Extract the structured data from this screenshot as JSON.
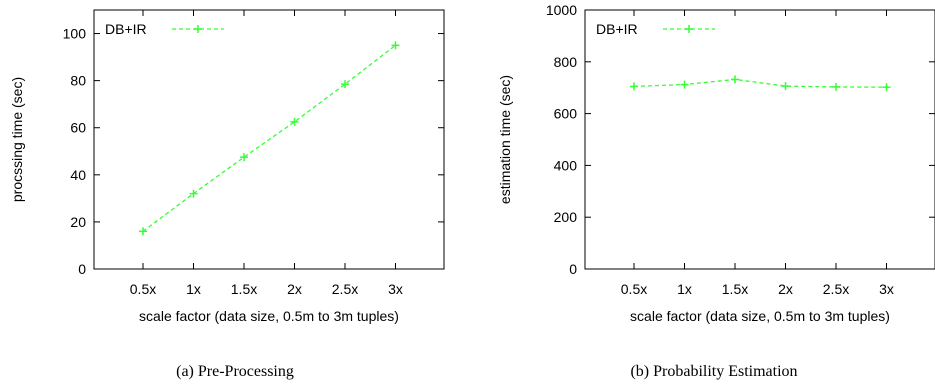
{
  "chart_data": [
    {
      "type": "line",
      "categories": [
        "0.5x",
        "1x",
        "1.5x",
        "2x",
        "2.5x",
        "3x"
      ],
      "series": [
        {
          "name": "DB+IR",
          "values": [
            16,
            32,
            47.5,
            62.5,
            78.5,
            95
          ],
          "color": "#33ff33"
        }
      ],
      "xlabel": "scale factor (data size, 0.5m to 3m tuples)",
      "ylabel": "procssing time (sec)",
      "ylim": [
        0,
        110
      ],
      "yticks": [
        0,
        20,
        40,
        60,
        80,
        100
      ],
      "legend": "top-left",
      "grid": false,
      "caption": "(a) Pre-Processing"
    },
    {
      "type": "line",
      "categories": [
        "0.5x",
        "1x",
        "1.5x",
        "2x",
        "2.5x",
        "3x"
      ],
      "series": [
        {
          "name": "DB+IR",
          "values": [
            705,
            712,
            732,
            706,
            703,
            702
          ],
          "color": "#33ff33"
        }
      ],
      "xlabel": "scale factor (data size, 0.5m to 3m tuples)",
      "ylabel": "estimation time (sec)",
      "ylim": [
        0,
        1000
      ],
      "yticks": [
        0,
        200,
        400,
        600,
        800,
        1000
      ],
      "legend": "top-left",
      "grid": false,
      "caption": "(b) Probability Estimation"
    }
  ]
}
